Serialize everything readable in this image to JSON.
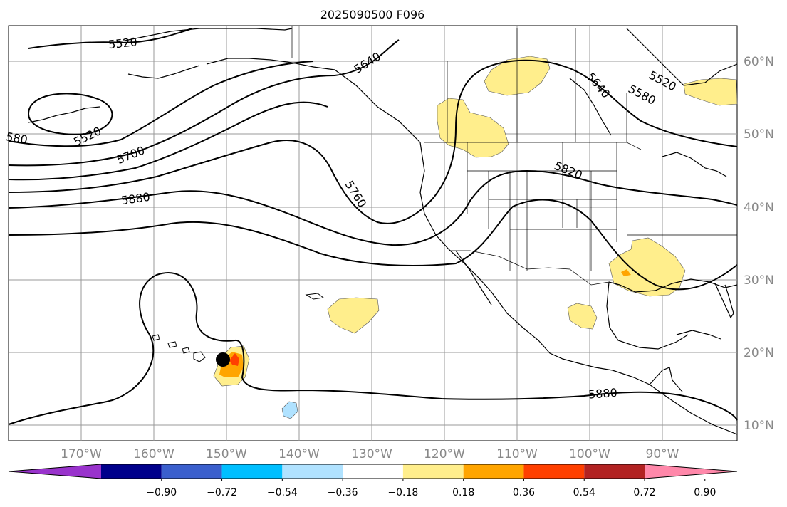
{
  "title": "2025090500 F096",
  "lon_labels": [
    "170°W",
    "160°W",
    "150°W",
    "140°W",
    "130°W",
    "120°W",
    "110°W",
    "100°W",
    "90°W"
  ],
  "lat_labels": [
    "60°N",
    "50°N",
    "40°N",
    "30°N",
    "20°N",
    "10°N"
  ],
  "contour_labels": [
    "5520",
    "5520",
    "5520",
    "5580",
    "580",
    "5640",
    "5640",
    "5700",
    "5760",
    "5820",
    "5880",
    "5880"
  ],
  "colorbar": {
    "ticks": [
      "−0.90",
      "−0.72",
      "−0.54",
      "−0.36",
      "−0.18",
      "0.18",
      "0.36",
      "0.54",
      "0.72",
      "0.90"
    ],
    "colors": [
      "#9933cc",
      "#00008b",
      "#3a5fcd",
      "#00bfff",
      "#b0e2ff",
      "#ffffff",
      "#ffee8c",
      "#ffa500",
      "#ff4000",
      "#b22222",
      "#ff88aa"
    ]
  },
  "colors": {
    "contour": "#000000",
    "grid": "#999999",
    "coast": "#000000",
    "axis_label": "#888888",
    "storm_marker": "#000000"
  }
}
